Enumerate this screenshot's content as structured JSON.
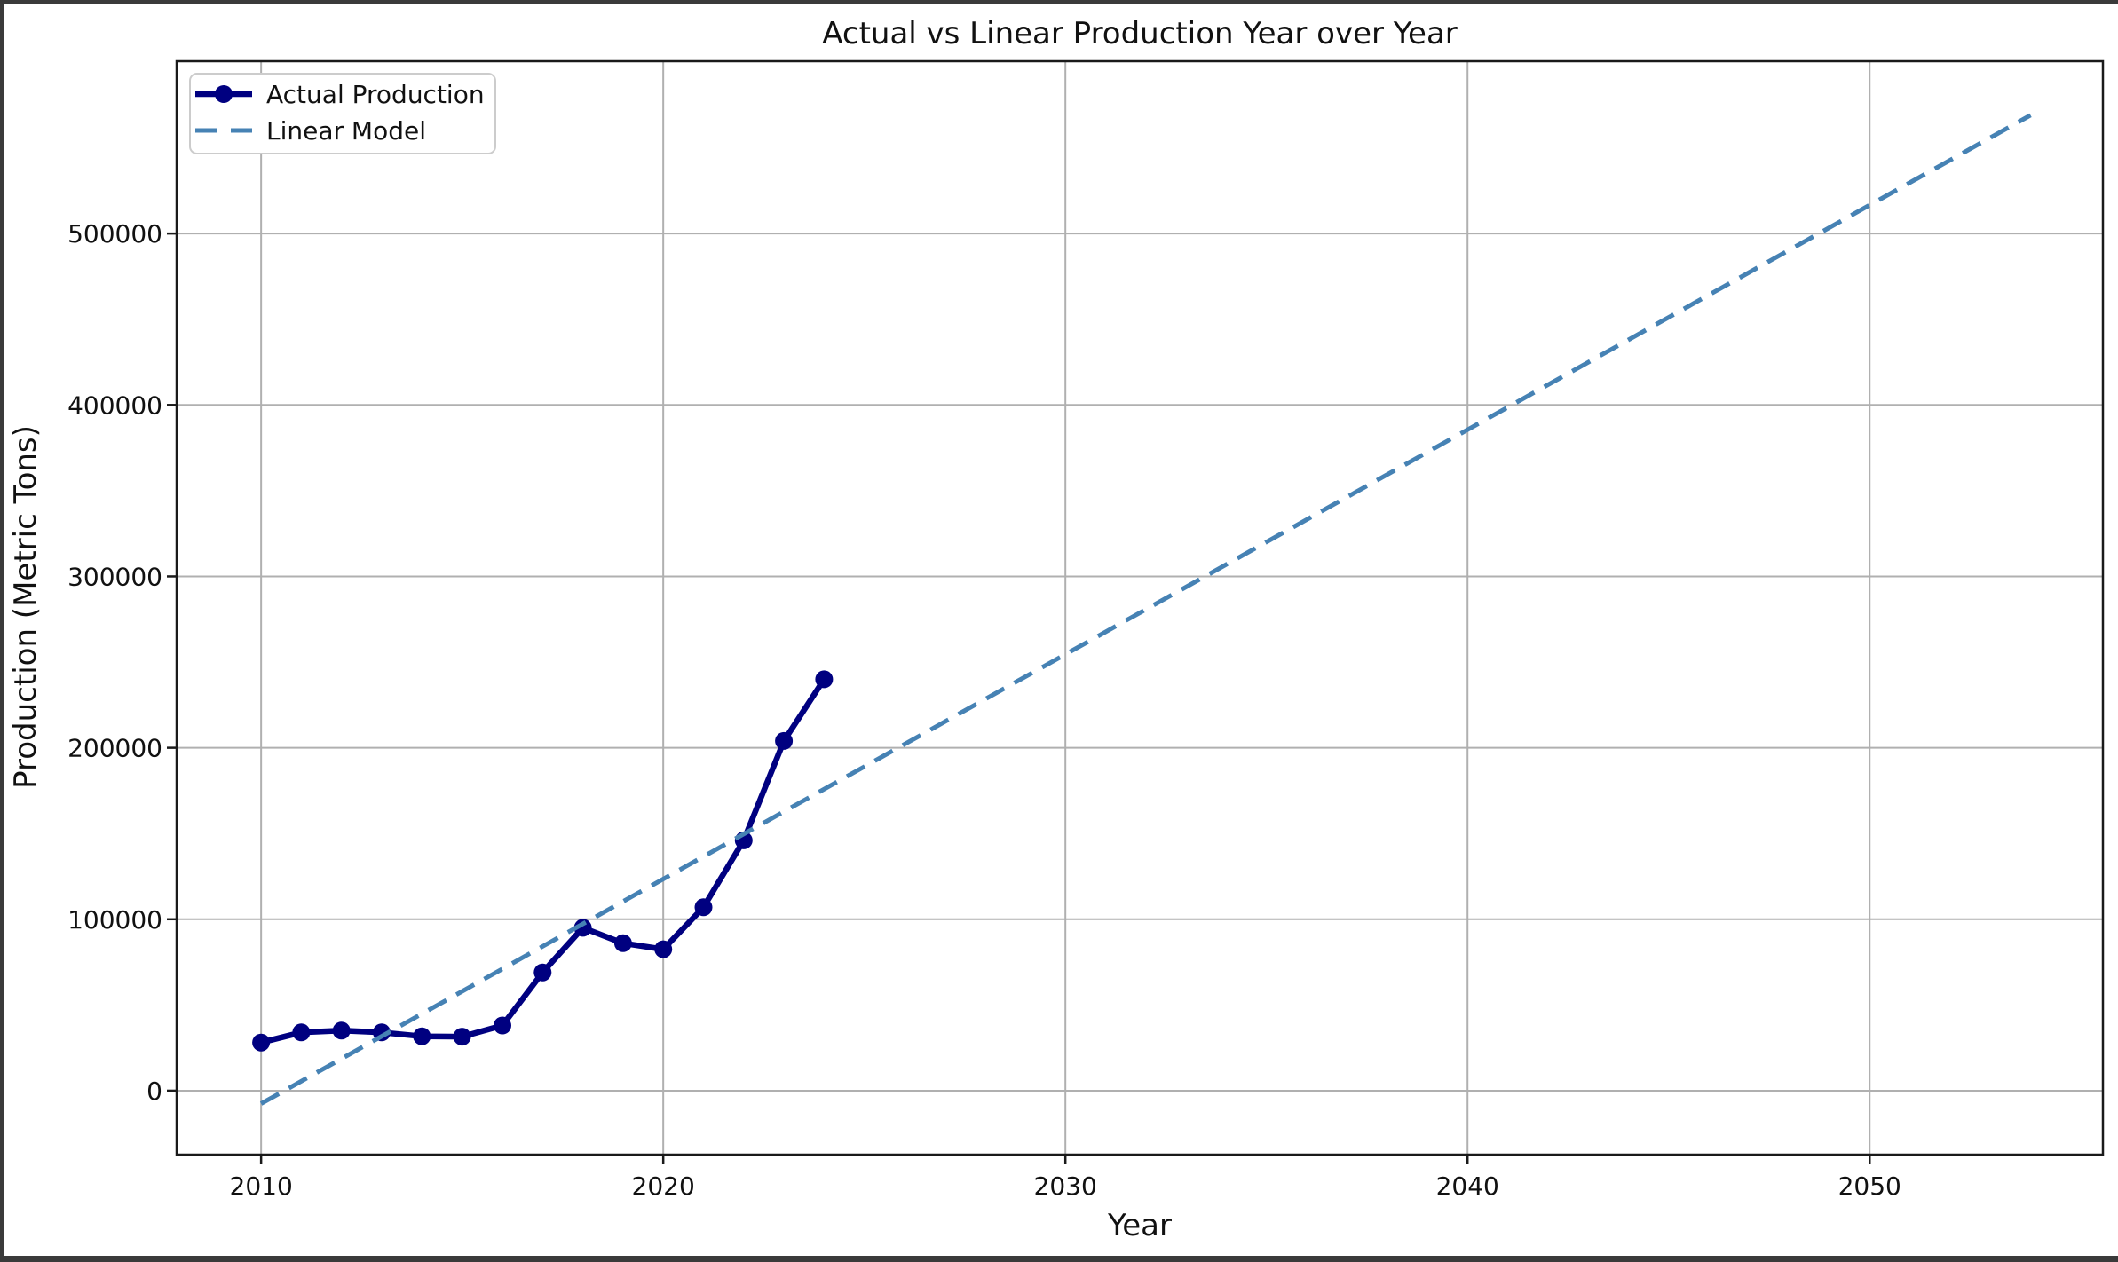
{
  "figure": {
    "title": "Actual vs Linear Production Year over Year",
    "xlabel": "Year",
    "ylabel": "Production (Metric Tons)"
  },
  "legend": {
    "position": "upper left",
    "entries": [
      {
        "label": "Actual Production",
        "color": "#000080",
        "line_style": "solid",
        "marker": "circle"
      },
      {
        "label": "Linear Model",
        "color": "#4682b4",
        "line_style": "dashed",
        "marker": "none"
      }
    ]
  },
  "chart_data": {
    "type": "line",
    "title": "Actual vs Linear Production Year over Year",
    "xlabel": "Year",
    "ylabel": "Production (Metric Tons)",
    "grid": true,
    "legend_position": "upper left",
    "x_ticks": [
      2010,
      2020,
      2030,
      2040,
      2050
    ],
    "y_ticks": [
      0,
      100000,
      200000,
      300000,
      400000,
      500000
    ],
    "xlim": [
      2007.9,
      2055.8
    ],
    "ylim": [
      -37300,
      600500
    ],
    "series": [
      {
        "name": "Actual Production",
        "style": "solid",
        "marker": "circle",
        "color": "#000080",
        "x": [
          2010,
          2011,
          2012,
          2013,
          2014,
          2015,
          2016,
          2017,
          2018,
          2019,
          2020,
          2021,
          2022,
          2023,
          2024
        ],
        "y": [
          28100,
          34000,
          35000,
          34000,
          31700,
          31500,
          38000,
          69000,
          95000,
          86000,
          82500,
          107000,
          146000,
          204000,
          240000
        ]
      },
      {
        "name": "Linear Model",
        "style": "dashed",
        "marker": "none",
        "color": "#4682b4",
        "x": [
          2010,
          2054
        ],
        "y": [
          -7600,
          569000
        ]
      }
    ]
  },
  "colors": {
    "actual_series": "#000080",
    "model_series": "#4682b4",
    "gridline": "#b0b0b0",
    "spine": "#1a1a1a",
    "outer_frame": "#3a3a3a",
    "background": "#ffffff",
    "legend_border": "#cccccc"
  }
}
